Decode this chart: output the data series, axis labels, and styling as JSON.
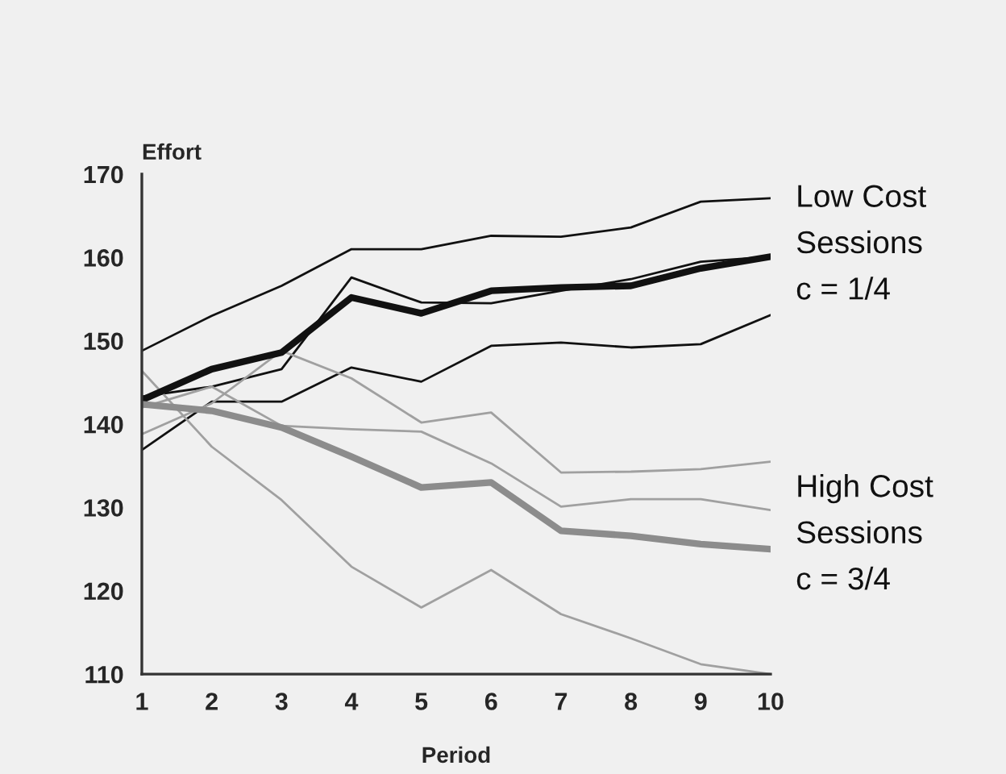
{
  "chart_data": {
    "type": "line",
    "xlabel": "Period",
    "ylabel": "Effort",
    "x": [
      1,
      2,
      3,
      4,
      5,
      6,
      7,
      8,
      9,
      10
    ],
    "xlim": [
      1,
      10
    ],
    "xticks": [
      1,
      2,
      3,
      4,
      5,
      6,
      7,
      8,
      9,
      10
    ],
    "ylim": [
      110,
      170
    ],
    "yticks": [
      110,
      120,
      130,
      140,
      150,
      160,
      170
    ],
    "grid": false,
    "legend": false,
    "marker": "none",
    "line_style": "solid",
    "series": [
      {
        "color": "#111111",
        "values": [
          148.8,
          153,
          156.6,
          161,
          161,
          162.6,
          162.5,
          163.6,
          166.7,
          167.1
        ]
      },
      {
        "color": "#111111",
        "values": [
          143.3,
          144.5,
          146.6,
          157.6,
          154.6,
          154.5,
          156,
          157.4,
          159.5,
          160.1
        ]
      },
      {
        "color": "#111111",
        "values": [
          136.9,
          142.7,
          142.7,
          146.8,
          145.1,
          149.4,
          149.8,
          149.2,
          149.6,
          153.1
        ]
      },
      {
        "color": "#a0a0a0",
        "values": [
          138.8,
          142.5,
          148.8,
          145.5,
          140.2,
          141.4,
          134.2,
          134.3,
          134.6,
          135.5
        ]
      },
      {
        "color": "#a0a0a0",
        "values": [
          146.4,
          137.3,
          130.9,
          122.9,
          118,
          122.5,
          117.2,
          114.3,
          111.2,
          110
        ]
      },
      {
        "color": "#a0a0a0",
        "values": [
          142,
          144.5,
          139.8,
          139.4,
          139.1,
          135.3,
          130.1,
          131,
          131,
          129.7
        ]
      },
      {
        "color": "#111111",
        "values": [
          142.9,
          146.6,
          148.6,
          155.2,
          153.3,
          156,
          156.4,
          156.6,
          158.7,
          160.1
        ]
      },
      {
        "color": "#8c8c8c",
        "values": [
          142.4,
          141.6,
          139.6,
          136.1,
          132.4,
          133,
          127.2,
          126.6,
          125.6,
          125
        ]
      }
    ],
    "annotations": [
      "Low Cost\nSessions\nc = 1/4",
      "High Cost\nSessions\nc = 3/4"
    ]
  }
}
